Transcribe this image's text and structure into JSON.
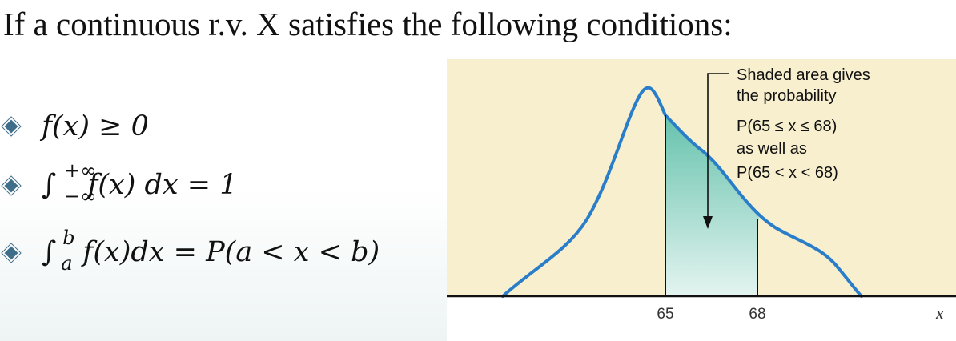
{
  "intro": "If a continuous r.v. X satisfies the following conditions:",
  "conditions": [
    {
      "id": "c1",
      "text": "f(x) ≥ 0"
    },
    {
      "id": "c2",
      "integral_upper": "+∞",
      "integral_lower": "−∞",
      "integrand": "f(x) dx = 1"
    },
    {
      "id": "c3",
      "integral_upper": "b",
      "integral_lower": "a",
      "integrand": "f(x)dx = P(a < x < b)"
    }
  ],
  "figure": {
    "background": "#f8efcf",
    "curve_color": "#2a7dc9",
    "shade_top_color": "#66c2ad",
    "shade_bottom_color": "#e4f4f0",
    "annotation_lines": [
      "Shaded area gives",
      "the probability",
      "P(65 ≤ x ≤ 68)",
      "as well as",
      "P(65 < x < 68)"
    ],
    "tick_labels": [
      "65",
      "68"
    ],
    "axis_label": "x"
  }
}
